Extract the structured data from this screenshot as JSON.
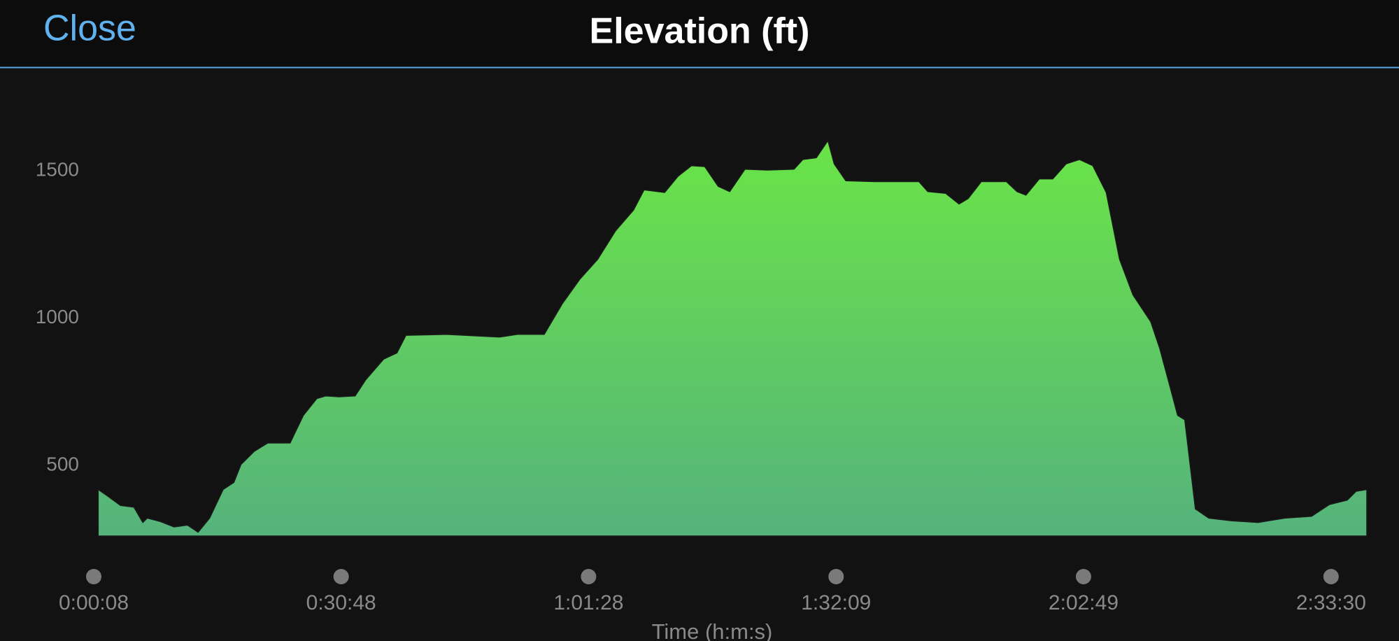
{
  "header": {
    "close": "Close",
    "title": "Elevation (ft)"
  },
  "chart_data": {
    "type": "area",
    "x_label": "Time (h:m:s)",
    "x": [
      41,
      108,
      207,
      307,
      373,
      406,
      506,
      605,
      705,
      784,
      870,
      970,
      1050,
      1103,
      1202,
      1302,
      1468,
      1567,
      1667,
      1733,
      1832,
      1952,
      2031,
      2164,
      2263,
      2330,
      2629,
      2894,
      3027,
      3159,
      3358,
      3491,
      3624,
      3756,
      3889,
      4022,
      4101,
      4254,
      4353,
      4453,
      4552,
      4652,
      4738,
      4851,
      5017,
      5216,
      5282,
      5382,
      5468,
      5515,
      5601,
      5813,
      6145,
      6211,
      6344,
      6443,
      6510,
      6609,
      6795,
      6875,
      6941,
      7040,
      7140,
      7239,
      7339,
      7438,
      7538,
      7637,
      7737,
      7869,
      7936,
      8016,
      8069,
      8122,
      8201,
      8301,
      8467,
      8666,
      8865,
      9064,
      9197,
      9330,
      9396,
      9476
    ],
    "values": [
      418,
      397,
      364,
      358,
      306,
      321,
      309,
      291,
      297,
      273,
      321,
      418,
      442,
      503,
      548,
      576,
      576,
      670,
      727,
      736,
      733,
      736,
      791,
      861,
      882,
      942,
      945,
      939,
      936,
      945,
      945,
      1048,
      1133,
      1200,
      1297,
      1367,
      1436,
      1427,
      1482,
      1518,
      1515,
      1448,
      1430,
      1506,
      1503,
      1506,
      1539,
      1545,
      1603,
      1524,
      1467,
      1464,
      1464,
      1430,
      1424,
      1388,
      1406,
      1464,
      1464,
      1430,
      1418,
      1473,
      1473,
      1524,
      1539,
      1518,
      1427,
      1200,
      1079,
      988,
      897,
      761,
      670,
      655,
      352,
      321,
      312,
      306,
      321,
      327,
      367,
      382,
      412,
      418
    ],
    "gradient": [
      "#6ae447",
      "#55b37c"
    ],
    "xlim": [
      8,
      9476
    ],
    "ylim": [
      260,
      1660
    ],
    "yticks": [
      500,
      1000,
      1500
    ],
    "xticks": [
      {
        "value": 8,
        "label": "0:00:08"
      },
      {
        "value": 1848,
        "label": "0:30:48"
      },
      {
        "value": 3688,
        "label": "1:01:28"
      },
      {
        "value": 5529,
        "label": "1:32:09"
      },
      {
        "value": 7369,
        "label": "2:02:49"
      },
      {
        "value": 9210,
        "label": "2:33:30"
      }
    ],
    "grid": false
  }
}
